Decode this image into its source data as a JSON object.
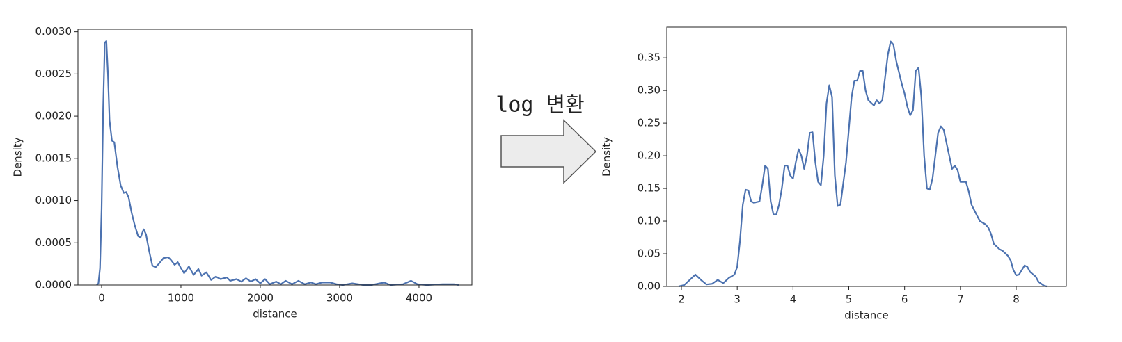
{
  "annotation": "log 변환",
  "chart_data": [
    {
      "type": "line",
      "xlabel": "distance",
      "ylabel": "Density",
      "color": "#4c72b0",
      "x": [
        -60,
        -40,
        -20,
        0,
        20,
        40,
        60,
        80,
        100,
        130,
        160,
        200,
        240,
        280,
        310,
        340,
        380,
        420,
        460,
        490,
        530,
        560,
        600,
        640,
        680,
        720,
        780,
        840,
        880,
        920,
        960,
        1000,
        1040,
        1100,
        1160,
        1220,
        1260,
        1320,
        1380,
        1440,
        1500,
        1580,
        1620,
        1700,
        1760,
        1820,
        1880,
        1940,
        2000,
        2060,
        2120,
        2200,
        2260,
        2320,
        2400,
        2480,
        2560,
        2640,
        2700,
        2780,
        2880,
        2960,
        3040,
        3160,
        3300,
        3400,
        3560,
        3640,
        3800,
        3900,
        3980,
        4100,
        4300,
        4440,
        4500
      ],
      "values": [
        0,
        2e-05,
        0.0002,
        0.0009,
        0.0021,
        0.00287,
        0.00289,
        0.0025,
        0.00195,
        0.00171,
        0.00169,
        0.0014,
        0.00118,
        0.00109,
        0.0011,
        0.00104,
        0.00085,
        0.0007,
        0.00058,
        0.00056,
        0.00066,
        0.0006,
        0.0004,
        0.00023,
        0.00021,
        0.00025,
        0.00032,
        0.00033,
        0.00029,
        0.00024,
        0.00027,
        0.0002,
        0.00014,
        0.00022,
        0.00012,
        0.00019,
        0.00011,
        0.00015,
        6e-05,
        0.0001,
        7e-05,
        9e-05,
        5e-05,
        7e-05,
        4e-05,
        8e-05,
        4e-05,
        7e-05,
        2e-05,
        7e-05,
        1e-05,
        4e-05,
        1e-05,
        5e-05,
        1e-05,
        5e-05,
        1e-05,
        3e-05,
        1e-05,
        3e-05,
        3e-05,
        1e-05,
        0,
        2e-05,
        0,
        0,
        3e-05,
        0,
        1e-05,
        5e-05,
        1e-05,
        0,
        1e-05,
        1e-05,
        0
      ],
      "xlim": [
        -298,
        4667
      ],
      "ylim": [
        0,
        0.00303
      ],
      "xticks": [
        0,
        1000,
        2000,
        3000,
        4000
      ],
      "yticks": [
        {
          "value": 0,
          "label": "0.0000"
        },
        {
          "value": 0.0005,
          "label": "0.0005"
        },
        {
          "value": 0.001,
          "label": "0.0010"
        },
        {
          "value": 0.0015,
          "label": "0.0015"
        },
        {
          "value": 0.002,
          "label": "0.0020"
        },
        {
          "value": 0.0025,
          "label": "0.0025"
        },
        {
          "value": 0.003,
          "label": "0.0030"
        }
      ]
    },
    {
      "type": "line",
      "xlabel": "distance",
      "ylabel": "Density",
      "color": "#4c72b0",
      "x": [
        1.95,
        2.05,
        2.15,
        2.25,
        2.35,
        2.45,
        2.55,
        2.65,
        2.75,
        2.85,
        2.95,
        3.0,
        3.05,
        3.1,
        3.15,
        3.2,
        3.25,
        3.3,
        3.4,
        3.45,
        3.5,
        3.55,
        3.6,
        3.65,
        3.7,
        3.75,
        3.8,
        3.85,
        3.9,
        3.95,
        4.0,
        4.05,
        4.1,
        4.15,
        4.2,
        4.25,
        4.3,
        4.35,
        4.4,
        4.45,
        4.5,
        4.55,
        4.6,
        4.65,
        4.7,
        4.75,
        4.8,
        4.85,
        4.95,
        5.0,
        5.05,
        5.1,
        5.15,
        5.2,
        5.25,
        5.3,
        5.35,
        5.45,
        5.5,
        5.55,
        5.6,
        5.65,
        5.7,
        5.75,
        5.8,
        5.85,
        5.95,
        6.0,
        6.05,
        6.1,
        6.15,
        6.2,
        6.25,
        6.3,
        6.35,
        6.4,
        6.45,
        6.5,
        6.55,
        6.6,
        6.65,
        6.7,
        6.75,
        6.8,
        6.85,
        6.9,
        6.95,
        7.0,
        7.05,
        7.1,
        7.15,
        7.2,
        7.3,
        7.35,
        7.45,
        7.5,
        7.55,
        7.6,
        7.7,
        7.75,
        7.85,
        7.9,
        7.95,
        8.0,
        8.05,
        8.1,
        8.15,
        8.2,
        8.25,
        8.35,
        8.4,
        8.5,
        8.55
      ],
      "values": [
        0,
        0.002,
        0.01,
        0.018,
        0.01,
        0.003,
        0.004,
        0.01,
        0.005,
        0.013,
        0.018,
        0.03,
        0.07,
        0.125,
        0.148,
        0.147,
        0.13,
        0.128,
        0.13,
        0.155,
        0.185,
        0.18,
        0.13,
        0.11,
        0.11,
        0.125,
        0.15,
        0.185,
        0.185,
        0.17,
        0.165,
        0.19,
        0.21,
        0.2,
        0.18,
        0.2,
        0.235,
        0.236,
        0.19,
        0.16,
        0.155,
        0.2,
        0.28,
        0.308,
        0.29,
        0.17,
        0.123,
        0.125,
        0.19,
        0.24,
        0.29,
        0.315,
        0.315,
        0.33,
        0.33,
        0.3,
        0.285,
        0.277,
        0.285,
        0.28,
        0.285,
        0.32,
        0.355,
        0.375,
        0.37,
        0.345,
        0.31,
        0.295,
        0.275,
        0.262,
        0.27,
        0.33,
        0.335,
        0.29,
        0.2,
        0.15,
        0.148,
        0.165,
        0.2,
        0.235,
        0.245,
        0.24,
        0.22,
        0.2,
        0.18,
        0.185,
        0.178,
        0.16,
        0.16,
        0.16,
        0.145,
        0.125,
        0.108,
        0.1,
        0.095,
        0.09,
        0.08,
        0.065,
        0.057,
        0.055,
        0.047,
        0.04,
        0.025,
        0.017,
        0.018,
        0.025,
        0.032,
        0.03,
        0.022,
        0.015,
        0.007,
        0.001,
        0
      ],
      "xlim": [
        1.738,
        8.898
      ],
      "ylim": [
        0,
        0.397
      ],
      "xticks": [
        2,
        3,
        4,
        5,
        6,
        7,
        8
      ],
      "yticks": [
        {
          "value": 0,
          "label": "0.00"
        },
        0.05,
        {
          "value": 0.1,
          "label": "0.10"
        },
        0.15,
        {
          "value": 0.2,
          "label": "0.20"
        },
        0.25,
        {
          "value": 0.3,
          "label": "0.30"
        },
        0.35
      ]
    }
  ]
}
